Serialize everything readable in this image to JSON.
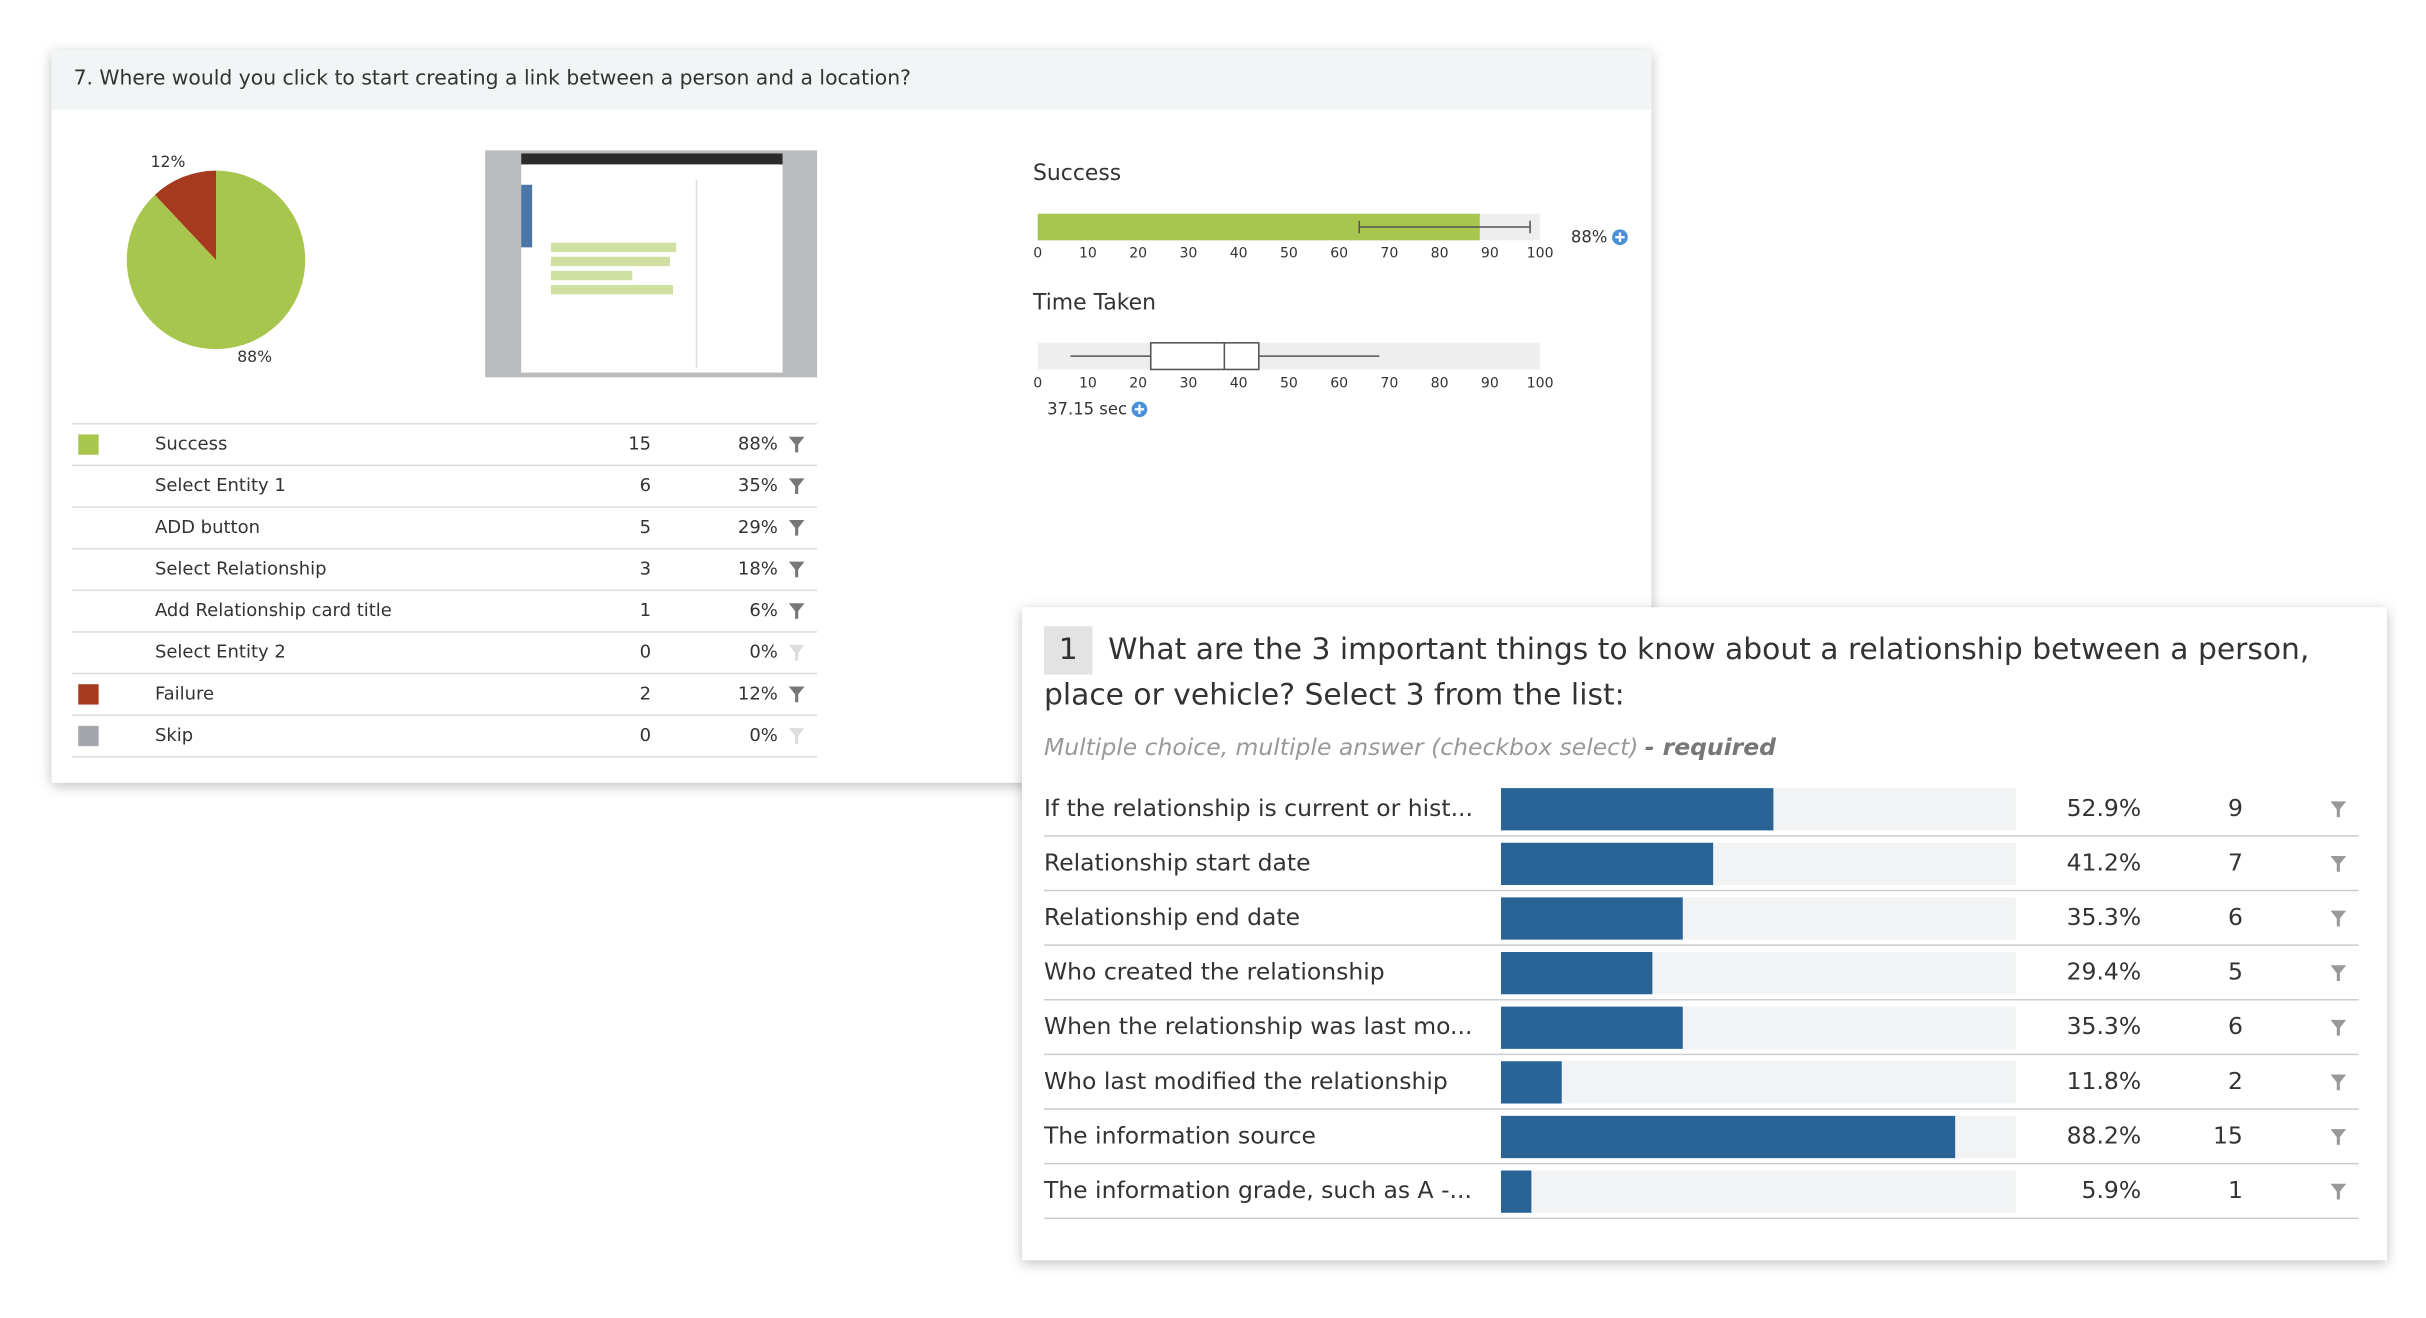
{
  "panel1": {
    "question": "7. Where would you click to start creating a link between a person and a location?",
    "pie": {
      "type": "pie",
      "values": [
        88,
        12
      ],
      "colors": [
        "#a8c64e",
        "#a53a1f"
      ],
      "value_labels": [
        "88%",
        "12%"
      ]
    },
    "table": {
      "rows": [
        {
          "name": "Success",
          "color": "#a8c64e",
          "count": 15,
          "percent": "88%"
        },
        {
          "name": "Select Entity 1",
          "count": 6,
          "percent": "35%"
        },
        {
          "name": "ADD button",
          "count": 5,
          "percent": "29%"
        },
        {
          "name": "Select Relationship",
          "count": 3,
          "percent": "18%"
        },
        {
          "name": "Add Relationship card title",
          "count": 1,
          "percent": "6%"
        },
        {
          "name": "Select Entity 2",
          "count": 0,
          "percent": "0%"
        },
        {
          "name": "Failure",
          "color": "#a53a1f",
          "count": 2,
          "percent": "12%"
        },
        {
          "name": "Skip",
          "color": "#a3a5ab",
          "count": 0,
          "percent": "0%"
        }
      ]
    },
    "success": {
      "type": "bar",
      "title": "Success",
      "value": 88,
      "error": [
        64,
        98
      ],
      "color": "#a8c64e",
      "value_label": "88%",
      "xlim": [
        0,
        100
      ],
      "xticks": [
        0,
        10,
        20,
        30,
        40,
        50,
        60,
        70,
        80,
        90,
        100
      ]
    },
    "time": {
      "type": "box",
      "title": "Time Taken",
      "whisker_low": 6.5,
      "q1": 22.5,
      "median": 37.15,
      "q3": 44,
      "whisker_high": 68,
      "median_label": "37.15 sec",
      "xlim": [
        0,
        100
      ],
      "xticks": [
        0,
        10,
        20,
        30,
        40,
        50,
        60,
        70,
        80,
        90,
        100
      ]
    }
  },
  "panel2": {
    "type": "bar",
    "number": "1",
    "question": "What are the 3 important things to know about a relationship between a person, place or vehicle? Select 3 from the list:",
    "subtitle": "Multiple choice, multiple answer (checkbox select)",
    "required": "- required",
    "color": "#2a6496",
    "xlim": [
      0,
      100
    ],
    "rows": [
      {
        "label": "If the relationship is current or hist...",
        "value": 52.9,
        "value_label": "52.9%",
        "count": 9
      },
      {
        "label": "Relationship start date",
        "value": 41.2,
        "value_label": "41.2%",
        "count": 7
      },
      {
        "label": "Relationship end date",
        "value": 35.3,
        "value_label": "35.3%",
        "count": 6
      },
      {
        "label": "Who created the relationship",
        "value": 29.4,
        "value_label": "29.4%",
        "count": 5
      },
      {
        "label": "When the relationship was last mo...",
        "value": 35.3,
        "value_label": "35.3%",
        "count": 6
      },
      {
        "label": "Who last modified the relationship",
        "value": 11.8,
        "value_label": "11.8%",
        "count": 2
      },
      {
        "label": "The information source",
        "value": 88.2,
        "value_label": "88.2%",
        "count": 15
      },
      {
        "label": "The information grade, such as A -...",
        "value": 5.9,
        "value_label": "5.9%",
        "count": 1
      }
    ]
  }
}
